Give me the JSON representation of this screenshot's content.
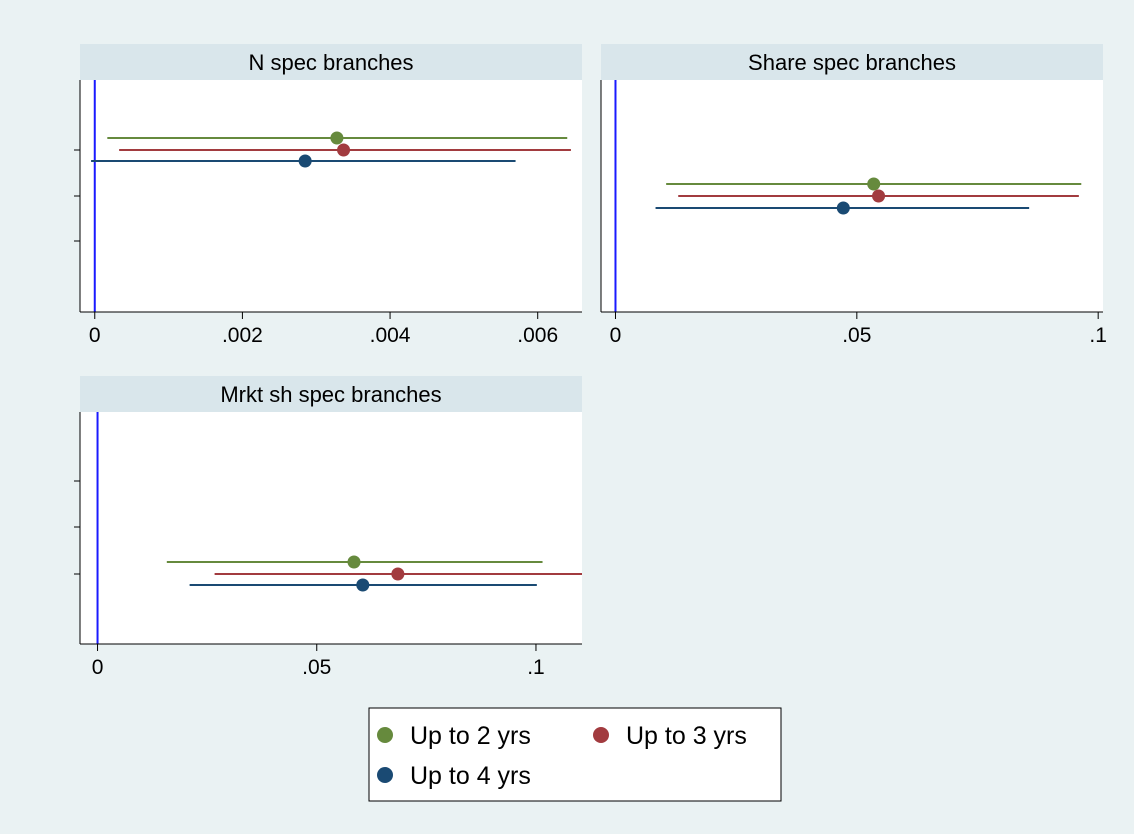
{
  "chart_data": {
    "type": "scatter",
    "subtype": "coefficient-plot",
    "colors": {
      "background": "#eaf2f3",
      "plot_background": "#ffffff",
      "strip": "#d9e6eb",
      "zero_line": "#1a1aff",
      "axis": "#000000"
    },
    "series": [
      {
        "name": "Up to 2 yrs",
        "color": "#668a3d"
      },
      {
        "name": "Up to 3 yrs",
        "color": "#a23b3f"
      },
      {
        "name": "Up to 4 yrs",
        "color": "#1a4a73"
      }
    ],
    "legend": {
      "position": "bottom-center",
      "entries": [
        "Up to 2 yrs",
        "Up to 3 yrs",
        "Up to 4 yrs"
      ]
    },
    "panels": [
      {
        "title": "N spec branches",
        "xlim": [
          -0.0002,
          0.0066
        ],
        "xticks": [
          0,
          0.002,
          0.004,
          0.006
        ],
        "xtick_labels": [
          "0",
          ".002",
          ".004",
          ".006"
        ],
        "reference_line": 0,
        "points": [
          {
            "series": "Up to 2 yrs",
            "estimate": 0.00328,
            "ci": [
              0.00017,
              0.0064
            ]
          },
          {
            "series": "Up to 3 yrs",
            "estimate": 0.00337,
            "ci": [
              0.00033,
              0.00645
            ]
          },
          {
            "series": "Up to 4 yrs",
            "estimate": 0.00285,
            "ci": [
              -5e-05,
              0.0057
            ]
          }
        ]
      },
      {
        "title": "Share spec branches",
        "xlim": [
          -0.003,
          0.101
        ],
        "xticks": [
          0,
          0.05,
          0.1
        ],
        "xtick_labels": [
          "0",
          ".05",
          ".1"
        ],
        "reference_line": 0,
        "points": [
          {
            "series": "Up to 2 yrs",
            "estimate": 0.0535,
            "ci": [
              0.0105,
              0.0965
            ]
          },
          {
            "series": "Up to 3 yrs",
            "estimate": 0.0545,
            "ci": [
              0.013,
              0.096
            ]
          },
          {
            "series": "Up to 4 yrs",
            "estimate": 0.0472,
            "ci": [
              0.0083,
              0.0857
            ]
          }
        ]
      },
      {
        "title": "Mrkt sh spec branches",
        "xlim": [
          -0.004,
          0.1105
        ],
        "xticks": [
          0,
          0.05,
          0.1
        ],
        "xtick_labels": [
          "0",
          ".05",
          ".1"
        ],
        "reference_line": 0,
        "points": [
          {
            "series": "Up to 2 yrs",
            "estimate": 0.0585,
            "ci": [
              0.0158,
              0.1015
            ]
          },
          {
            "series": "Up to 3 yrs",
            "estimate": 0.0685,
            "ci": [
              0.0267,
              0.1105
            ]
          },
          {
            "series": "Up to 4 yrs",
            "estimate": 0.0605,
            "ci": [
              0.021,
              0.1002
            ]
          }
        ]
      }
    ]
  }
}
